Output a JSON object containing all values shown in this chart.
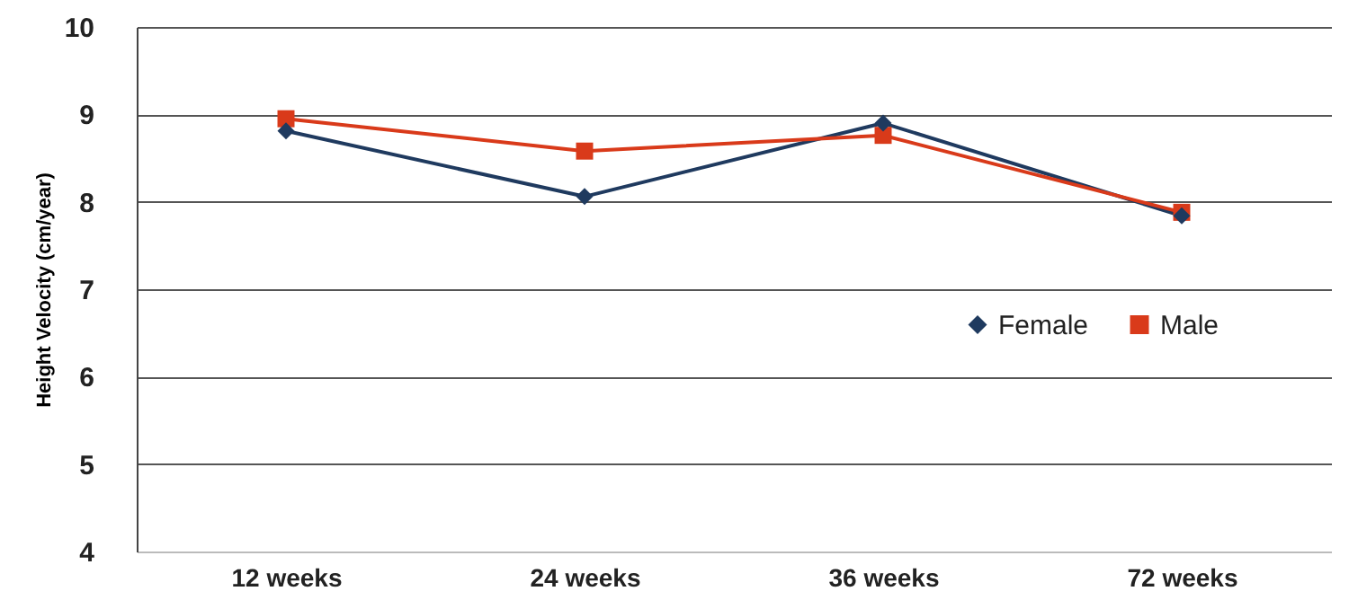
{
  "chart_data": {
    "type": "line",
    "ylabel": "Height Velocity (cm/year)",
    "categories": [
      "12 weeks",
      "24 weeks",
      "36 weeks",
      "72 weeks"
    ],
    "series": [
      {
        "name": "Female",
        "color": "#1f3a5f",
        "marker": "diamond",
        "values": [
          8.81,
          8.06,
          8.9,
          7.84
        ]
      },
      {
        "name": "Male",
        "color": "#d93a1a",
        "marker": "square",
        "values": [
          8.95,
          8.58,
          8.76,
          7.88
        ]
      }
    ],
    "ylim": [
      4,
      10
    ],
    "yticks": [
      4,
      5,
      6,
      7,
      8,
      9,
      10
    ],
    "grid": "y",
    "legend": "right",
    "line_style": "solid"
  }
}
